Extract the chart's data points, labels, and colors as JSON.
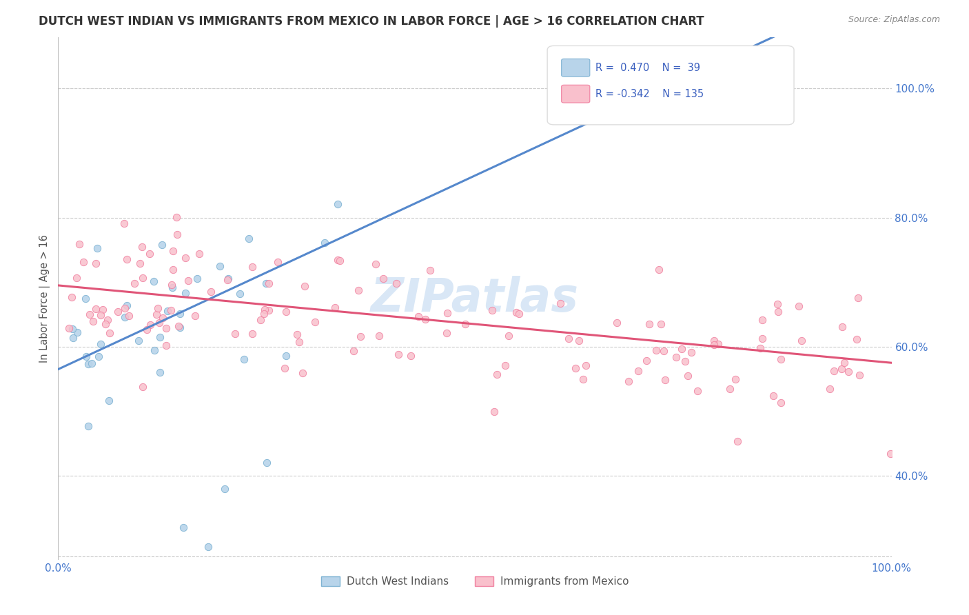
{
  "title": "DUTCH WEST INDIAN VS IMMIGRANTS FROM MEXICO IN LABOR FORCE | AGE > 16 CORRELATION CHART",
  "source": "Source: ZipAtlas.com",
  "ylabel": "In Labor Force | Age > 16",
  "xlim": [
    0.0,
    1.0
  ],
  "ylim": [
    0.27,
    1.08
  ],
  "xtick_positions": [
    0.0,
    1.0
  ],
  "xtick_labels": [
    "0.0%",
    "100.0%"
  ],
  "ytick_positions": [
    0.4,
    0.6,
    0.8,
    1.0
  ],
  "ytick_labels": [
    "40.0%",
    "60.0%",
    "80.0%",
    "100.0%"
  ],
  "legend_r1": "R=  0.470",
  "legend_n1": "N=  39",
  "legend_r2": "R= -0.342",
  "legend_n2": "N= 135",
  "color_blue_fill": "#b8d4ea",
  "color_blue_edge": "#7fb3d3",
  "color_pink_fill": "#f9c0cc",
  "color_pink_edge": "#f080a0",
  "color_blue_line": "#5588cc",
  "color_pink_line": "#e05578",
  "legend_text_color": "#3a5fbf",
  "axis_label_color": "#4477cc",
  "watermark_color": "#c0d8f0",
  "title_color": "#333333",
  "source_color": "#888888",
  "note_blue_intercept": 0.565,
  "note_blue_slope": 0.6,
  "note_pink_intercept": 0.695,
  "note_pink_slope": -0.12,
  "bottom_legend_label1": "Dutch West Indians",
  "bottom_legend_label2": "Immigrants from Mexico"
}
